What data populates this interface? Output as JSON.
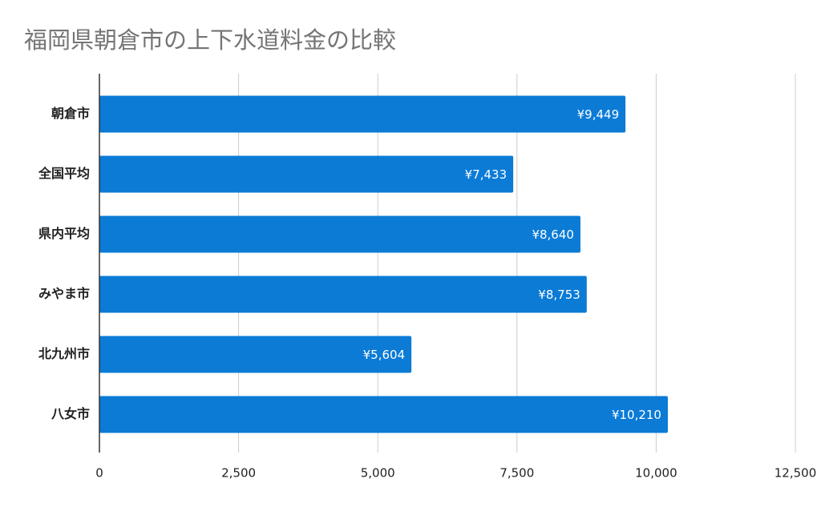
{
  "chart_data": {
    "type": "bar",
    "orientation": "horizontal",
    "title": "福岡県朝倉市の上下水道料金の比較",
    "categories": [
      "朝倉市",
      "全国平均",
      "県内平均",
      "みやま市",
      "北九州市",
      "八女市"
    ],
    "values": [
      9449,
      7433,
      8640,
      8753,
      5604,
      10210
    ],
    "value_labels": [
      "¥9,449",
      "¥7,433",
      "¥8,640",
      "¥8,753",
      "¥5,604",
      "¥10,210"
    ],
    "color": "#0b7bd6",
    "xlim": [
      0,
      12500
    ],
    "xticks": [
      0,
      {
        "value": 2500,
        "label": "2,500"
      },
      {
        "value": 5000,
        "label": "5,000"
      },
      {
        "value": 7500,
        "label": "7,500"
      },
      {
        "value": 10000,
        "label": "10,000"
      },
      {
        "value": 12500,
        "label": "12,500"
      }
    ],
    "grid": true
  }
}
